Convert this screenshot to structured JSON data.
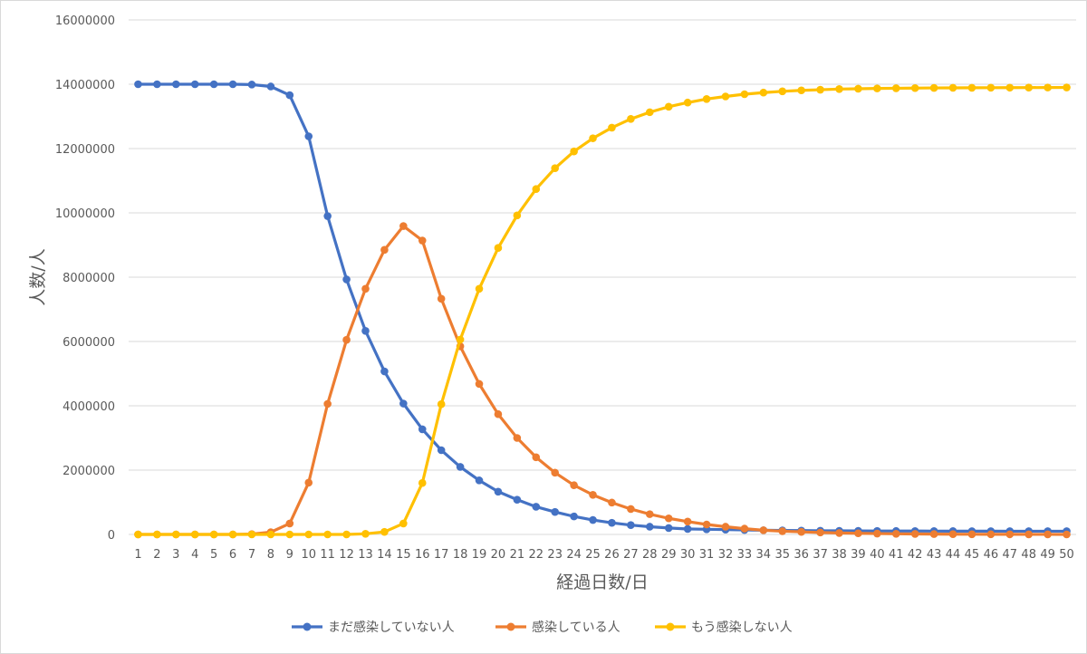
{
  "chart_data": {
    "type": "line",
    "title": "",
    "xlabel": "経過日数/日",
    "ylabel": "人数/人",
    "ylim": [
      0,
      16000000
    ],
    "yticks": [
      0,
      2000000,
      4000000,
      6000000,
      8000000,
      10000000,
      12000000,
      14000000,
      16000000
    ],
    "ytick_labels": [
      "0",
      "2000000",
      "4000000",
      "6000000",
      "8000000",
      "10000000",
      "12000000",
      "14000000",
      "16000000"
    ],
    "grid": "horizontal",
    "legend": "bottom",
    "categories": [
      "1",
      "2",
      "3",
      "4",
      "5",
      "6",
      "7",
      "8",
      "9",
      "10",
      "11",
      "12",
      "13",
      "14",
      "15",
      "16",
      "17",
      "18",
      "19",
      "20",
      "21",
      "22",
      "23",
      "24",
      "25",
      "26",
      "27",
      "28",
      "29",
      "30",
      "31",
      "32",
      "33",
      "34",
      "35",
      "36",
      "37",
      "38",
      "39",
      "40",
      "41",
      "42",
      "43",
      "44",
      "45",
      "46",
      "47",
      "48",
      "49",
      "50"
    ],
    "series": [
      {
        "name": "まだ感染していない人",
        "color": "#4472C4",
        "values": [
          14000000,
          14000000,
          14000000,
          14000000,
          14000000,
          14000000,
          13990000,
          13930000,
          13660000,
          12380000,
          9900000,
          7930000,
          6330000,
          5070000,
          4070000,
          3270000,
          2620000,
          2100000,
          1680000,
          1330000,
          1080000,
          860000,
          700000,
          560000,
          450000,
          360000,
          290000,
          240000,
          200000,
          170000,
          160000,
          150000,
          140000,
          130000,
          125000,
          120000,
          115000,
          112000,
          110000,
          108000,
          106000,
          105000,
          104000,
          103000,
          102000,
          101000,
          100000,
          100000,
          100000,
          100000
        ]
      },
      {
        "name": "感染している人",
        "color": "#ED7D31",
        "values": [
          0,
          0,
          0,
          0,
          0,
          0,
          10000,
          70000,
          340000,
          1610000,
          4060000,
          6050000,
          7640000,
          8850000,
          9590000,
          9140000,
          7330000,
          5850000,
          4680000,
          3740000,
          3000000,
          2400000,
          1920000,
          1530000,
          1230000,
          990000,
          790000,
          630000,
          500000,
          400000,
          310000,
          240000,
          180000,
          130000,
          100000,
          80000,
          60000,
          45000,
          35000,
          27000,
          20000,
          15000,
          11000,
          8000,
          6000,
          4000,
          3000,
          2000,
          1000,
          0
        ]
      },
      {
        "name": "もう感染しない人",
        "color": "#FFC000",
        "values": [
          0,
          0,
          0,
          0,
          0,
          0,
          0,
          0,
          0,
          0,
          0,
          0,
          20000,
          80000,
          340000,
          1600000,
          4050000,
          6060000,
          7640000,
          8910000,
          9920000,
          10740000,
          11390000,
          11910000,
          12320000,
          12650000,
          12920000,
          13130000,
          13300000,
          13430000,
          13540000,
          13620000,
          13690000,
          13740000,
          13780000,
          13810000,
          13830000,
          13850000,
          13860000,
          13870000,
          13875000,
          13880000,
          13885000,
          13888000,
          13890000,
          13892000,
          13894000,
          13896000,
          13898000,
          13900000
        ]
      }
    ]
  }
}
